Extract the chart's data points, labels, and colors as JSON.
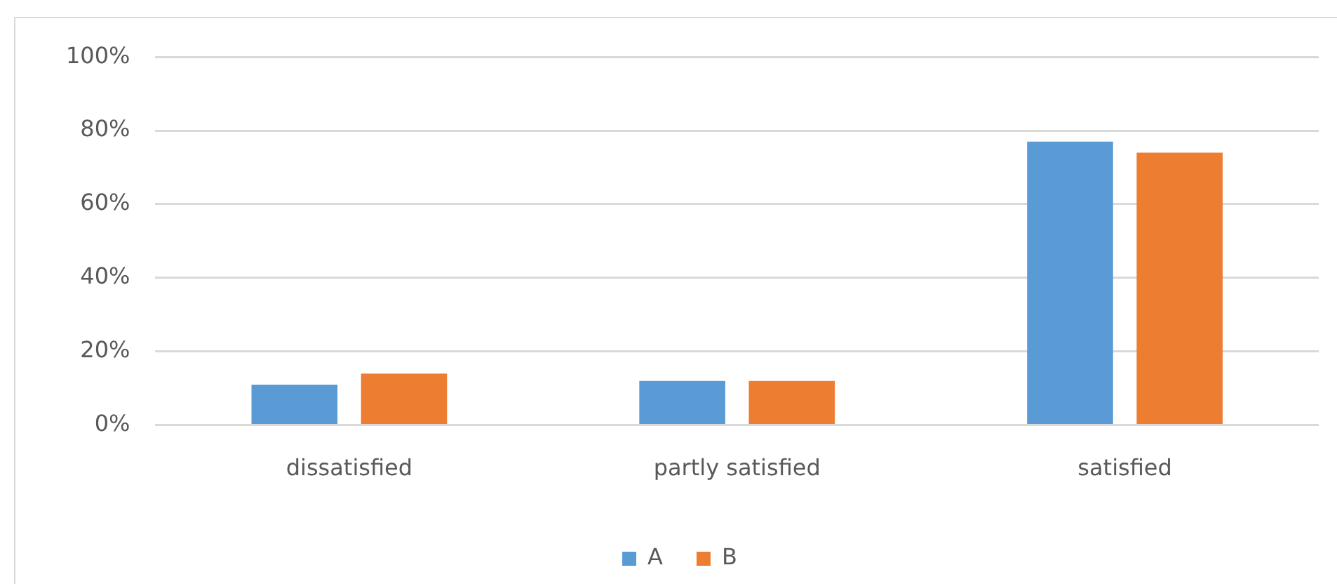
{
  "chart_data": {
    "type": "bar",
    "categories": [
      "dissatisfied",
      "partly satisfied",
      "satisfied"
    ],
    "series": [
      {
        "name": "A",
        "color": "#5b9bd5",
        "values": [
          11,
          12,
          77
        ]
      },
      {
        "name": "B",
        "color": "#ed7d31",
        "values": [
          14,
          12,
          74
        ]
      }
    ],
    "ylim": [
      0,
      100
    ],
    "yticks": [
      {
        "value": 0,
        "label": "0%"
      },
      {
        "value": 20,
        "label": "20%"
      },
      {
        "value": 40,
        "label": "40%"
      },
      {
        "value": 60,
        "label": "60%"
      },
      {
        "value": 80,
        "label": "80%"
      },
      {
        "value": 100,
        "label": "100%"
      }
    ],
    "grid": "y",
    "legend": "bottom"
  }
}
